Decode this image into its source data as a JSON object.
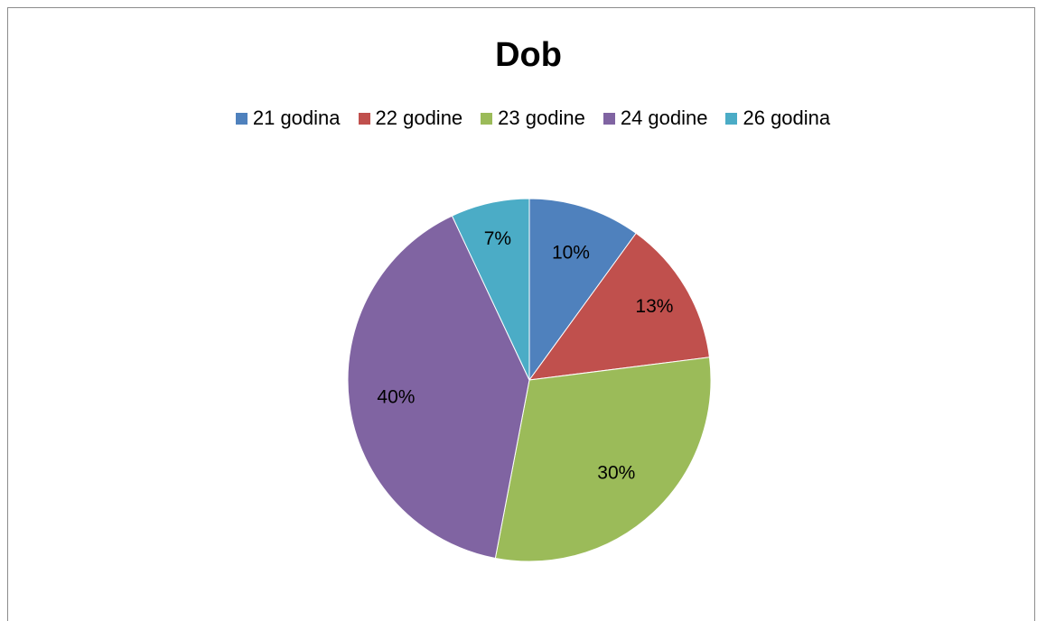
{
  "chart_data": {
    "type": "pie",
    "title": "Dob",
    "legend_position": "top",
    "categories": [
      "21 godina",
      "22 godine",
      "23 godine",
      "24 godine",
      "26 godina"
    ],
    "values": [
      10,
      13,
      30,
      40,
      7
    ],
    "labels": [
      "10%",
      "13%",
      "30%",
      "40%",
      "7%"
    ],
    "colors": [
      "#4f81bd",
      "#c0504d",
      "#9bbb59",
      "#8064a2",
      "#4bacc6"
    ]
  }
}
